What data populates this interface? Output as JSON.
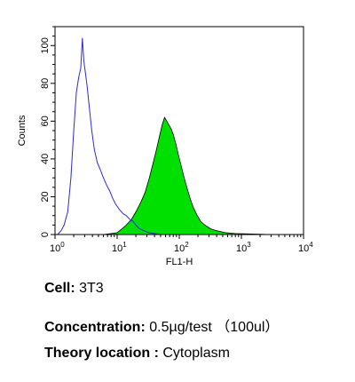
{
  "chart_data": {
    "type": "area",
    "xlabel": "FL1-H",
    "ylabel": "Counts",
    "x_scale": "log",
    "xlim": [
      1,
      10000
    ],
    "ylim": [
      0,
      110
    ],
    "x_ticks": [
      {
        "base": "10",
        "exp": "0",
        "value": 1
      },
      {
        "base": "10",
        "exp": "1",
        "value": 10
      },
      {
        "base": "10",
        "exp": "2",
        "value": 100
      },
      {
        "base": "10",
        "exp": "3",
        "value": 1000
      },
      {
        "base": "10",
        "exp": "4",
        "value": 10000
      }
    ],
    "y_ticks": [
      "0",
      "20",
      "40",
      "60",
      "80",
      "100"
    ],
    "y_tick_values": [
      0,
      20,
      40,
      60,
      80,
      100
    ],
    "grid": false,
    "series": [
      {
        "style": "outline",
        "color": "#2b2bd6",
        "points": [
          [
            1.1,
            0
          ],
          [
            1.25,
            2
          ],
          [
            1.4,
            5
          ],
          [
            1.6,
            12
          ],
          [
            1.8,
            30
          ],
          [
            2.0,
            55
          ],
          [
            2.2,
            75
          ],
          [
            2.4,
            83
          ],
          [
            2.6,
            88
          ],
          [
            2.75,
            104
          ],
          [
            2.9,
            92
          ],
          [
            3.1,
            85
          ],
          [
            3.3,
            78
          ],
          [
            3.6,
            66
          ],
          [
            3.9,
            55
          ],
          [
            4.3,
            45
          ],
          [
            4.8,
            38
          ],
          [
            5.4,
            34
          ],
          [
            6.0,
            30
          ],
          [
            6.8,
            26
          ],
          [
            7.6,
            23
          ],
          [
            8.5,
            19
          ],
          [
            9.5,
            16
          ],
          [
            11,
            13
          ],
          [
            12.5,
            11
          ],
          [
            14,
            10
          ],
          [
            16,
            8
          ],
          [
            18,
            7
          ],
          [
            20,
            5
          ],
          [
            23,
            3
          ],
          [
            27,
            2
          ],
          [
            32,
            1
          ],
          [
            40,
            0.5
          ],
          [
            50,
            0
          ]
        ]
      },
      {
        "style": "filled",
        "color": "#00e000",
        "points": [
          [
            6,
            0
          ],
          [
            8,
            0.5
          ],
          [
            10,
            1
          ],
          [
            12,
            3
          ],
          [
            14,
            5
          ],
          [
            17,
            8
          ],
          [
            20,
            12
          ],
          [
            24,
            17
          ],
          [
            28,
            22
          ],
          [
            33,
            30
          ],
          [
            38,
            38
          ],
          [
            43,
            45
          ],
          [
            48,
            52
          ],
          [
            53,
            58
          ],
          [
            58,
            62
          ],
          [
            63,
            60
          ],
          [
            68,
            58
          ],
          [
            74,
            56
          ],
          [
            80,
            53
          ],
          [
            88,
            48
          ],
          [
            97,
            42
          ],
          [
            108,
            36
          ],
          [
            120,
            30
          ],
          [
            135,
            24
          ],
          [
            150,
            19
          ],
          [
            170,
            14
          ],
          [
            195,
            10
          ],
          [
            220,
            7
          ],
          [
            260,
            5
          ],
          [
            320,
            3
          ],
          [
            400,
            2
          ],
          [
            550,
            1
          ],
          [
            800,
            0.5
          ],
          [
            1500,
            0.3
          ],
          [
            3000,
            0
          ]
        ]
      }
    ]
  },
  "captions": {
    "cell_label": "Cell:",
    "cell_value": " 3T3",
    "concentration_label": "Concentration:",
    "concentration_value": " 0.5µg/test （100ul）",
    "location_label": "Theory location :",
    "location_value": " Cytoplasm"
  }
}
